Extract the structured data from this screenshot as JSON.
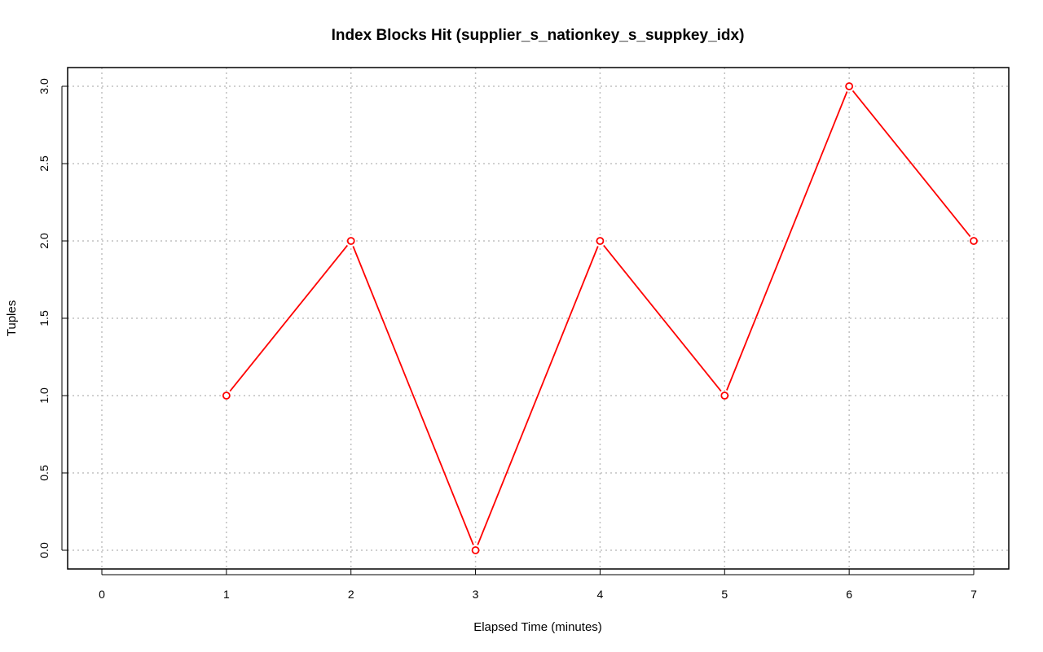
{
  "chart_data": {
    "type": "line",
    "title": "Index Blocks Hit (supplier_s_nationkey_s_suppkey_idx)",
    "xlabel": "Elapsed Time (minutes)",
    "ylabel": "Tuples",
    "x": [
      1,
      2,
      3,
      4,
      5,
      6,
      7
    ],
    "series": [
      {
        "values": [
          1,
          2,
          0,
          2,
          1,
          3,
          2
        ]
      }
    ],
    "xlim": [
      0,
      7
    ],
    "ylim": [
      0,
      3
    ],
    "xticks": [
      "0",
      "1",
      "2",
      "3",
      "4",
      "5",
      "6",
      "7"
    ],
    "xtick_values": [
      0,
      1,
      2,
      3,
      4,
      5,
      6,
      7
    ],
    "yticks": [
      "0.0",
      "0.5",
      "1.0",
      "1.5",
      "2.0",
      "2.5",
      "3.0"
    ],
    "ytick_values": [
      0,
      0.5,
      1,
      1.5,
      2,
      2.5,
      3
    ],
    "grid": true,
    "colors": {
      "series": "#ff0000",
      "grid": "#c0c0c0",
      "axis": "#000000"
    }
  }
}
